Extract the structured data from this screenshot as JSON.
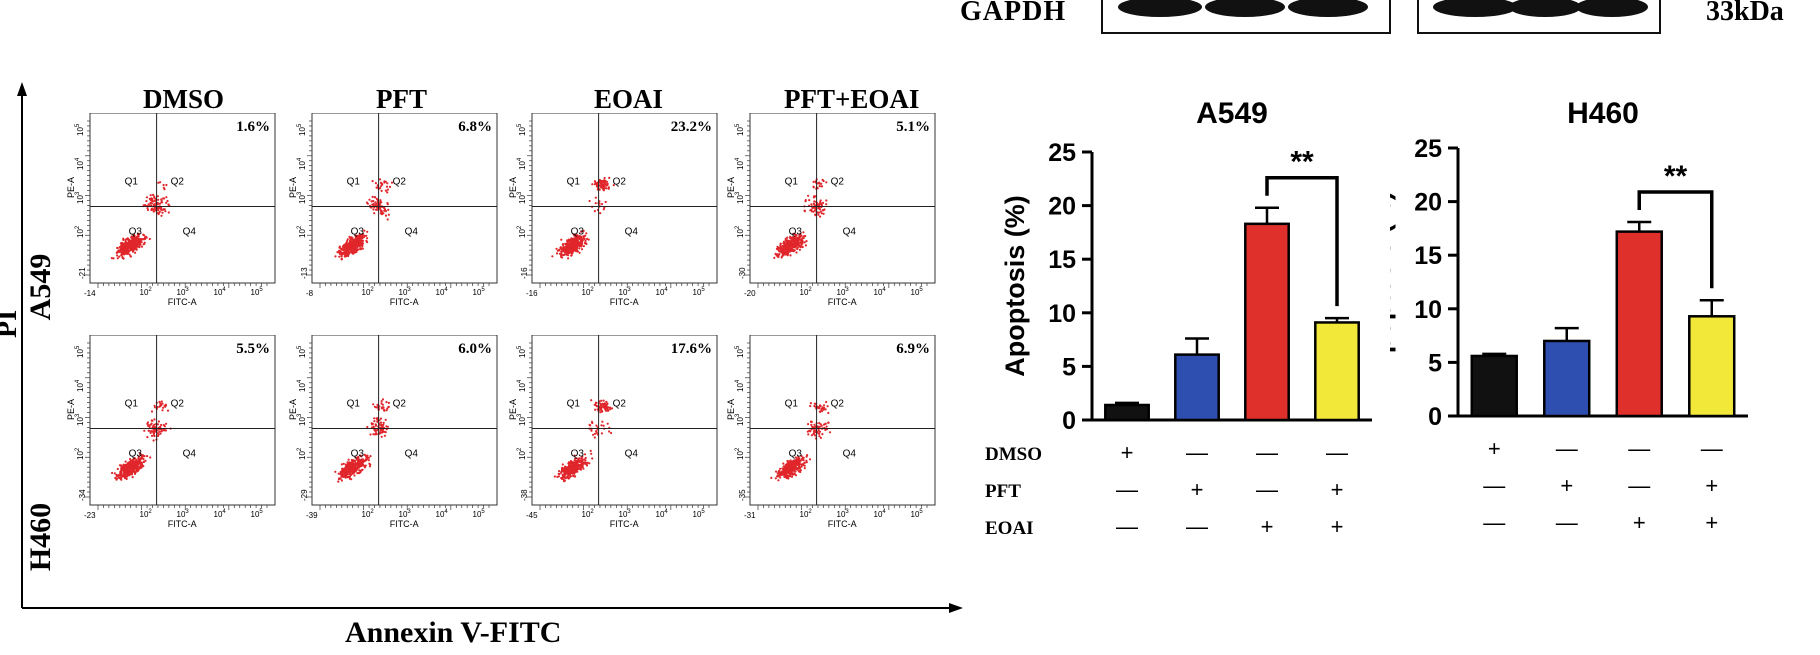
{
  "western_blot": {
    "row_label": "GAPDH",
    "size_label": "33kDa"
  },
  "flow": {
    "y_axis_label": "PI",
    "x_axis_label": "Annexin V-FITC",
    "columns": [
      "DMSO",
      "PFT",
      "EOAI",
      "PFT+EOAI"
    ],
    "rows": [
      "A549",
      "H460"
    ],
    "percentages": [
      [
        "1.6%",
        "6.8%",
        "23.2%",
        "5.1%"
      ],
      [
        "5.5%",
        "6.0%",
        "17.6%",
        "6.9%"
      ]
    ],
    "quadrants": [
      "Q1",
      "Q2",
      "Q3",
      "Q4"
    ],
    "axis_x_name": "FITC-A",
    "axis_y_name": "PE-A",
    "tick_labels": [
      "10",
      "10",
      "10",
      "10"
    ],
    "tick_exps": [
      "2",
      "3",
      "4",
      "5"
    ],
    "x_neg_ticks": [
      [
        "-14",
        "-8",
        "-16",
        "-20"
      ],
      [
        "-23",
        "-39",
        "-45",
        "-31"
      ]
    ],
    "y_neg_ticks": [
      [
        "-21",
        "-13",
        "-16",
        "-30"
      ],
      [
        "-34",
        "-29",
        "-38",
        "-35"
      ]
    ],
    "dot_color": "#e0262b"
  },
  "chart_data": [
    {
      "type": "bar",
      "title": "A549",
      "ylabel": "Apoptosis (%)",
      "ylim": [
        0,
        25
      ],
      "yticks": [
        0,
        5,
        10,
        15,
        20,
        25
      ],
      "categories": [
        "DMSO",
        "PFT",
        "EOAI",
        "PFT+EOAI"
      ],
      "values": [
        1.4,
        6.1,
        18.3,
        9.1
      ],
      "errors": [
        0.2,
        1.5,
        1.5,
        0.4
      ],
      "colors": [
        "#111111",
        "#2e4fb0",
        "#e0302b",
        "#f2e83a"
      ],
      "significance": {
        "between": [
          2,
          3
        ],
        "label": "**"
      },
      "conditions": [
        {
          "name": "DMSO",
          "marks": [
            "+",
            "—",
            "—",
            "—"
          ]
        },
        {
          "name": "PFT",
          "marks": [
            "—",
            "+",
            "—",
            "+"
          ]
        },
        {
          "name": "EOAI",
          "marks": [
            "—",
            "—",
            "+",
            "+"
          ]
        }
      ]
    },
    {
      "type": "bar",
      "title": "H460",
      "ylabel": "Apoptosis (%)",
      "ylim": [
        0,
        25
      ],
      "yticks": [
        0,
        5,
        10,
        15,
        20,
        25
      ],
      "categories": [
        "DMSO",
        "PFT",
        "EOAI",
        "PFT+EOAI"
      ],
      "values": [
        5.6,
        7.0,
        17.2,
        9.3
      ],
      "errors": [
        0.2,
        1.2,
        0.9,
        1.5
      ],
      "colors": [
        "#111111",
        "#2e4fb0",
        "#e0302b",
        "#f2e83a"
      ],
      "significance": {
        "between": [
          2,
          3
        ],
        "label": "**"
      },
      "conditions": [
        {
          "name": "DMSO",
          "marks": [
            "+",
            "—",
            "—",
            "—"
          ]
        },
        {
          "name": "PFT",
          "marks": [
            "—",
            "+",
            "—",
            "+"
          ]
        },
        {
          "name": "EOAI",
          "marks": [
            "—",
            "—",
            "+",
            "+"
          ]
        }
      ]
    }
  ]
}
